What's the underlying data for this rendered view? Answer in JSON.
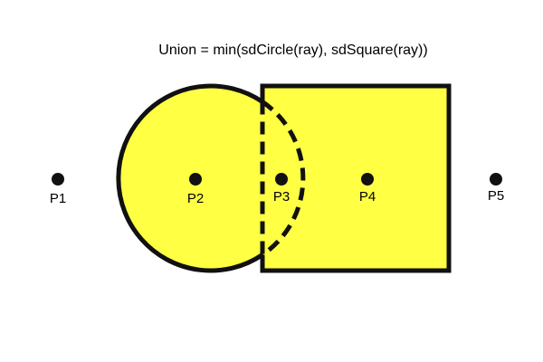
{
  "title": "Union = min(sdCircle(ray), sdSquare(ray))",
  "colors": {
    "fill": "#ffff44",
    "stroke": "#111111",
    "point": "#111111",
    "background": "#ffffff"
  },
  "shapes": {
    "circle": {
      "name": "circle",
      "fill_color": "#ffff44"
    },
    "square": {
      "name": "square",
      "fill_color": "#ffff44"
    }
  },
  "points": [
    {
      "label": "P1"
    },
    {
      "label": "P2"
    },
    {
      "label": "P3"
    },
    {
      "label": "P4"
    },
    {
      "label": "P5"
    }
  ]
}
